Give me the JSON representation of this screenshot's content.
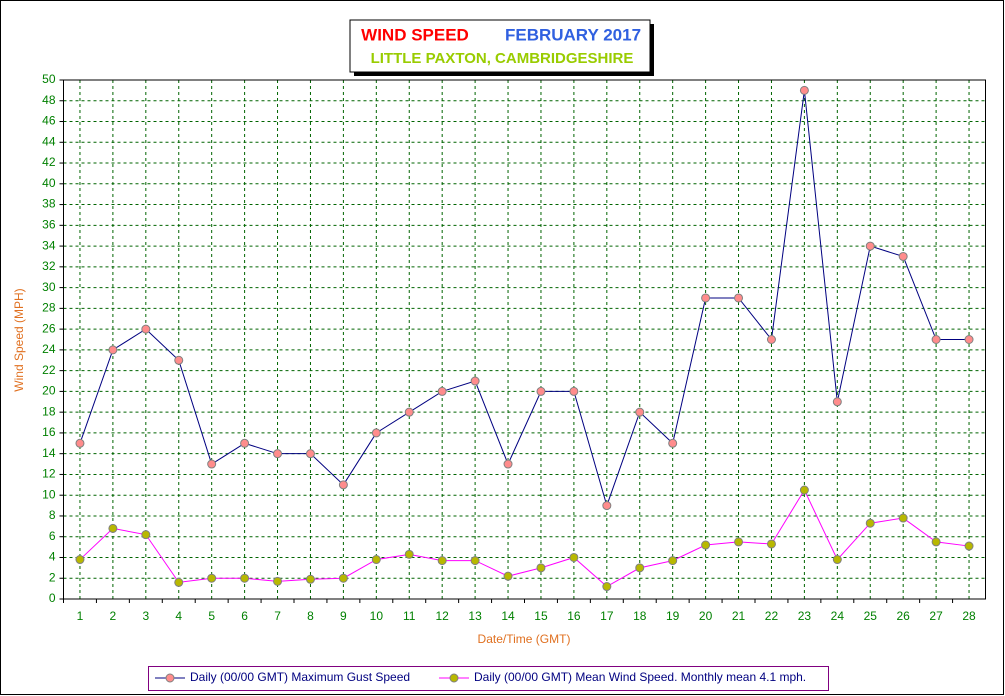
{
  "chart_data": {
    "type": "line",
    "title": "WIND SPEED",
    "title_period": "FEBRUARY 2017",
    "subtitle": "LITTLE PAXTON, CAMBRIDGESHIRE",
    "x_label": "Date/Time (GMT)",
    "y_label": "Wind Speed (MPH)",
    "categories": [
      "1",
      "2",
      "3",
      "4",
      "5",
      "6",
      "7",
      "8",
      "9",
      "10",
      "11",
      "12",
      "13",
      "14",
      "15",
      "16",
      "17",
      "18",
      "19",
      "20",
      "21",
      "22",
      "23",
      "24",
      "25",
      "26",
      "27",
      "28"
    ],
    "series": [
      {
        "name": "Daily (00/00 GMT) Maximum Gust Speed",
        "color": "#000080",
        "marker_color": "#ff8c8c",
        "values": [
          15,
          24,
          26,
          23,
          13,
          15,
          14,
          14,
          11,
          16,
          18,
          20,
          21,
          13,
          20,
          20,
          9,
          18,
          15,
          29,
          29,
          25,
          49,
          19,
          34,
          33,
          25,
          25
        ]
      },
      {
        "name": "Daily (00/00 GMT) Mean Wind Speed. Monthly mean 4.1 mph.",
        "color": "#ff00ff",
        "marker_color": "#b8b800",
        "values": [
          3.8,
          6.8,
          6.2,
          1.6,
          2.0,
          2.0,
          1.7,
          1.9,
          2.0,
          3.8,
          4.3,
          3.7,
          3.7,
          2.2,
          3.0,
          4.0,
          1.2,
          3.0,
          3.7,
          5.2,
          5.5,
          5.3,
          10.5,
          3.8,
          7.3,
          7.8,
          5.5,
          5.1
        ]
      }
    ],
    "ylim": [
      0,
      50
    ],
    "yticks": [
      0,
      2,
      4,
      6,
      8,
      10,
      12,
      14,
      16,
      18,
      20,
      22,
      24,
      26,
      28,
      30,
      32,
      34,
      36,
      38,
      40,
      42,
      44,
      46,
      48,
      50
    ],
    "grid": true,
    "legend": "bottom"
  }
}
